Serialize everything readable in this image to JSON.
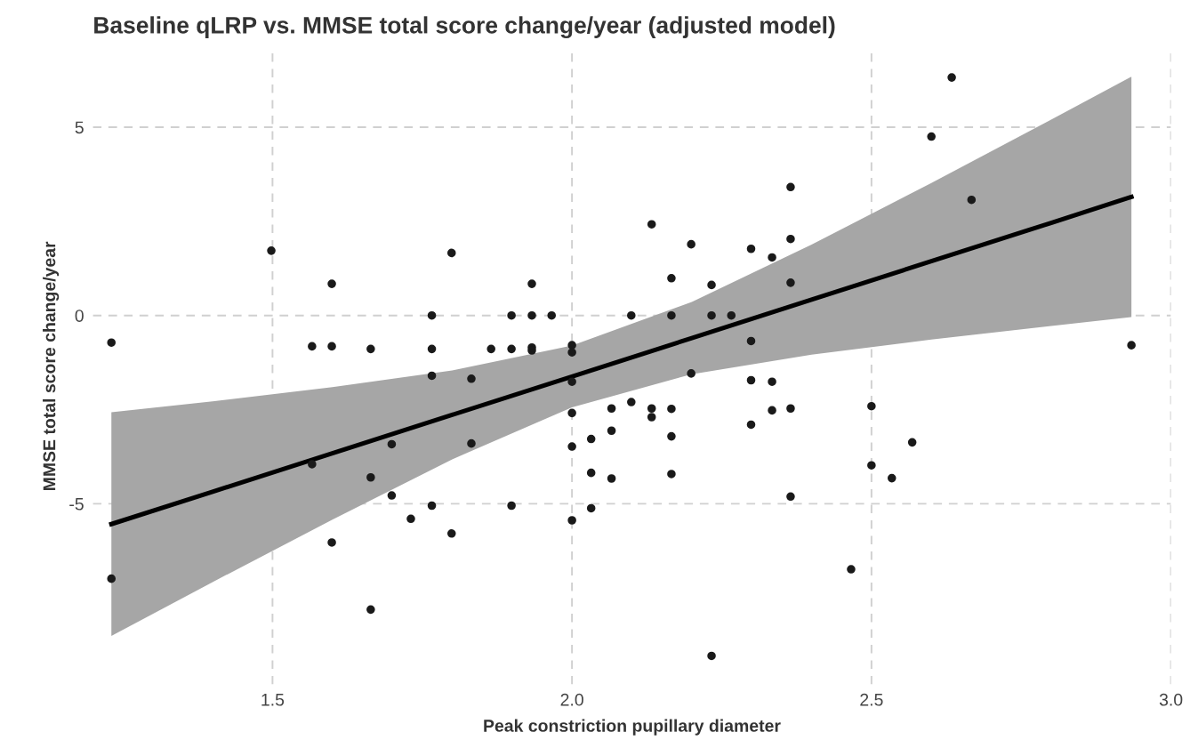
{
  "chart_data": {
    "type": "scatter",
    "title": "Baseline qLRP vs. MMSE total score change/year (adjusted model)",
    "xlabel": "Peak constriction pupillary diameter",
    "ylabel": "MMSE total score change/year",
    "xlim": [
      1.2,
      3.0
    ],
    "xticks": [
      1.5,
      {
        "value": 2,
        "label": "2.0"
      },
      2.5,
      {
        "value": 3,
        "label": "3.0"
      }
    ],
    "ylim": [
      -9.8,
      7.1
    ],
    "yticks": [
      -5,
      0,
      5
    ],
    "grid": true,
    "series": [
      {
        "marker": "circle",
        "color": "#1a1a1a",
        "x": [
          1.231,
          1.231,
          1.498,
          1.566,
          1.599,
          1.599,
          1.664,
          1.766,
          1.766,
          1.766,
          1.799,
          1.832,
          1.865,
          1.899,
          1.899,
          1.933,
          1.933,
          1.933,
          1.933,
          1.699,
          1.832,
          1.566,
          1.664,
          1.699,
          1.766,
          1.899,
          1.731,
          1.799,
          1.599,
          1.664,
          1.966,
          2.0,
          2.0,
          2.0,
          2.0,
          2.0,
          2.0,
          2.032,
          2.032,
          2.032,
          2.066,
          2.066,
          2.066,
          2.099,
          2.099,
          2.133,
          2.133,
          2.133,
          2.166,
          2.166,
          2.166,
          2.166,
          2.166,
          2.199,
          2.199,
          2.233,
          2.233,
          2.233,
          2.266,
          2.299,
          2.299,
          2.299,
          2.299,
          2.334,
          2.334,
          2.334,
          2.365,
          2.365,
          2.365,
          2.365,
          2.365,
          2.466,
          2.5,
          2.5,
          2.534,
          2.568,
          2.6,
          2.634,
          2.667,
          2.934
        ],
        "values": [
          -0.72,
          -6.99,
          1.72,
          -0.82,
          0.84,
          -0.82,
          -0.89,
          0,
          -0.89,
          -1.6,
          1.66,
          -1.68,
          -0.89,
          0,
          -0.89,
          0.84,
          0,
          -0.85,
          -0.93,
          -3.42,
          -3.4,
          -3.95,
          -4.3,
          -4.78,
          -5.05,
          -5.05,
          -5.4,
          -5.79,
          -6.03,
          -7.81,
          0,
          -0.79,
          -0.98,
          -1.76,
          -2.59,
          -3.48,
          -5.44,
          -3.28,
          -4.18,
          -5.12,
          -2.47,
          -3.06,
          -4.33,
          0,
          -2.3,
          2.42,
          -2.47,
          -2.7,
          0.99,
          0,
          -2.48,
          -3.21,
          -4.21,
          1.89,
          -1.54,
          0.81,
          0,
          -9.04,
          0,
          1.77,
          -0.68,
          -1.72,
          -2.9,
          1.54,
          -1.76,
          -2.52,
          3.41,
          2.03,
          0.87,
          -2.47,
          -4.81,
          -6.74,
          -2.41,
          -3.98,
          -4.32,
          -3.37,
          4.75,
          6.32,
          3.07,
          -0.79
        ]
      },
      {
        "type": "line",
        "color": "#000000",
        "x": [
          1.231,
          1.4,
          1.6,
          1.8,
          2.0,
          2.2,
          2.4,
          2.6,
          2.8,
          2.934
        ],
        "values": [
          -5.54,
          -4.68,
          -3.66,
          -2.64,
          -1.62,
          -0.6,
          0.42,
          1.44,
          2.46,
          3.15
        ],
        "lower": [
          -8.51,
          -7.08,
          -5.42,
          -3.82,
          -2.44,
          -1.56,
          -1.04,
          -0.64,
          -0.28,
          -0.04
        ],
        "upper": [
          -2.57,
          -2.28,
          -1.9,
          -1.46,
          -0.8,
          0.36,
          1.88,
          3.52,
          5.2,
          6.34
        ]
      }
    ]
  }
}
